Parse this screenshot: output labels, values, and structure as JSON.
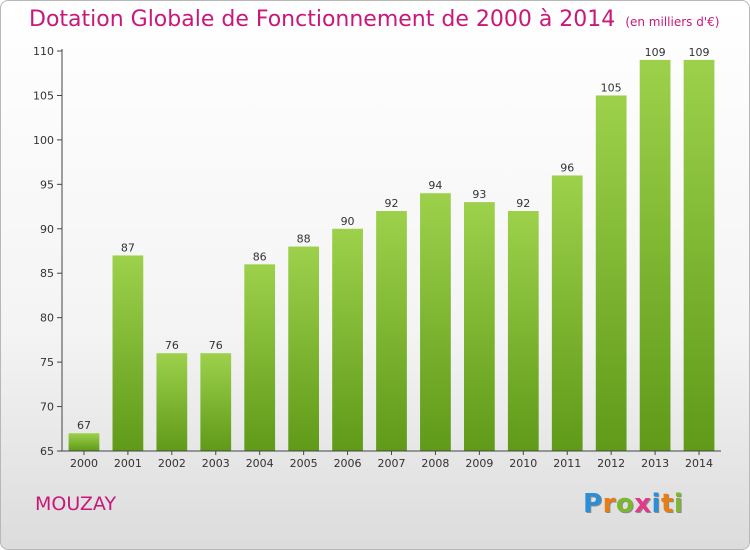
{
  "header": {
    "title": "Dotation Globale de Fonctionnement de 2000 à 2014",
    "subtitle": "(en milliers d'€)"
  },
  "footer": {
    "commune": "MOUZAY",
    "logo_letters": [
      "P",
      "r",
      "o",
      "x",
      "i",
      "t",
      "i"
    ],
    "logo_colors": [
      "#2a8fd6",
      "#e87d14",
      "#7cb82f",
      "#e23a8a",
      "#2a8fd6",
      "#e87d14",
      "#7cb82f"
    ]
  },
  "chart_data": {
    "type": "bar",
    "title": "Dotation Globale de Fonctionnement de 2000 à 2014",
    "subtitle": "(en milliers d'€)",
    "categories": [
      "2000",
      "2001",
      "2002",
      "2003",
      "2004",
      "2005",
      "2006",
      "2007",
      "2008",
      "2009",
      "2010",
      "2011",
      "2012",
      "2013",
      "2014"
    ],
    "values": [
      67,
      87,
      76,
      76,
      86,
      88,
      90,
      92,
      94,
      93,
      92,
      96,
      105,
      109,
      109
    ],
    "ylim": [
      65,
      110
    ],
    "yticks": [
      65,
      70,
      75,
      80,
      85,
      90,
      95,
      100,
      105,
      110
    ],
    "xlabel": "",
    "ylabel": "",
    "grid": false,
    "colors": {
      "bar_top": "#9dd14c",
      "bar_bottom": "#5f9a18",
      "axis": "#444444",
      "label": "#333333"
    }
  }
}
